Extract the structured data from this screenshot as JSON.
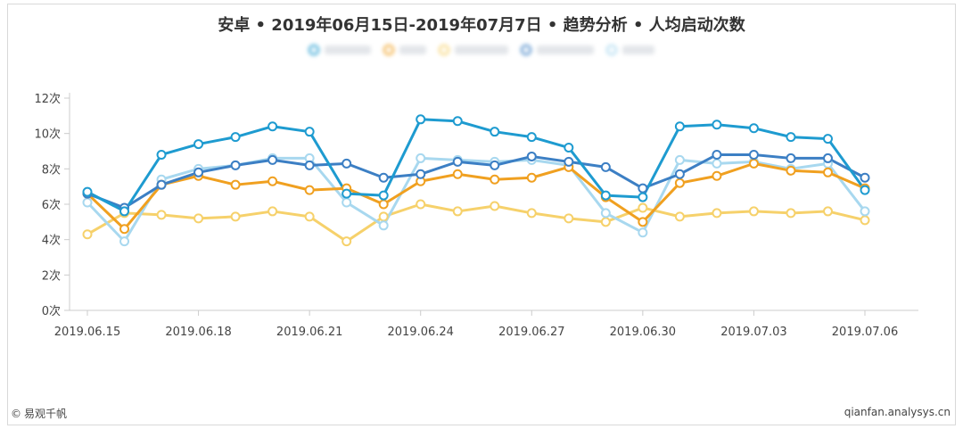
{
  "title": "安卓 • 2019年06月15日-2019年07月7日 • 趋势分析 • 人均启动次数",
  "footer": {
    "copyright_symbol": "©",
    "brand": "易观千帆",
    "url": "qianfan.analysys.cn"
  },
  "colors": {
    "axis": "#cccccc",
    "text": "#444444"
  },
  "chart_data": {
    "type": "line",
    "title": "安卓 • 2019年06月15日-2019年07月7日 • 趋势分析 • 人均启动次数",
    "xlabel": "",
    "ylabel": "",
    "ylim": [
      0,
      12
    ],
    "yticks": [
      0,
      2,
      4,
      6,
      8,
      10,
      12
    ],
    "ytick_labels": [
      "0次",
      "2次",
      "4次",
      "6次",
      "8次",
      "10次",
      "12次"
    ],
    "x": [
      "2019.06.15",
      "2019.06.16",
      "2019.06.17",
      "2019.06.18",
      "2019.06.19",
      "2019.06.20",
      "2019.06.21",
      "2019.06.22",
      "2019.06.23",
      "2019.06.24",
      "2019.06.25",
      "2019.06.26",
      "2019.06.27",
      "2019.06.28",
      "2019.06.29",
      "2019.06.30",
      "2019.07.01",
      "2019.07.02",
      "2019.07.03",
      "2019.07.04",
      "2019.07.05",
      "2019.07.06"
    ],
    "xtick_labels": [
      "2019.06.15",
      "2019.06.18",
      "2019.06.21",
      "2019.06.24",
      "2019.06.27",
      "2019.06.30",
      "2019.07.03",
      "2019.07.06"
    ],
    "grid": false,
    "legend_position": "top-center",
    "series": [
      {
        "name": "",
        "color": "#1e9bd0",
        "values": [
          6.7,
          5.6,
          8.8,
          9.4,
          9.8,
          10.4,
          10.1,
          6.6,
          6.5,
          10.8,
          10.7,
          10.1,
          9.8,
          9.2,
          6.5,
          6.4,
          10.4,
          10.5,
          10.3,
          9.8,
          9.7,
          6.8
        ]
      },
      {
        "name": "",
        "color": "#f0a020",
        "values": [
          6.6,
          4.6,
          7.1,
          7.6,
          7.1,
          7.3,
          6.8,
          6.9,
          6.0,
          7.3,
          7.7,
          7.4,
          7.5,
          8.1,
          6.4,
          5.0,
          7.2,
          7.6,
          8.3,
          7.9,
          7.8,
          6.9
        ]
      },
      {
        "name": "",
        "color": "#f6d16b",
        "values": [
          4.3,
          5.5,
          5.4,
          5.2,
          5.3,
          5.6,
          5.3,
          3.9,
          5.3,
          6.0,
          5.6,
          5.9,
          5.5,
          5.2,
          5.0,
          5.8,
          5.3,
          5.5,
          5.6,
          5.5,
          5.6,
          5.1
        ]
      },
      {
        "name": "",
        "color": "#3c7fc4",
        "values": [
          6.6,
          5.8,
          7.1,
          7.8,
          8.2,
          8.5,
          8.2,
          8.3,
          7.5,
          7.7,
          8.4,
          8.2,
          8.7,
          8.4,
          8.1,
          6.9,
          7.7,
          8.8,
          8.8,
          8.6,
          8.6,
          7.5
        ]
      },
      {
        "name": "",
        "color": "#a8d8ef",
        "values": [
          6.1,
          3.9,
          7.4,
          8.0,
          8.2,
          8.6,
          8.6,
          6.1,
          4.8,
          8.6,
          8.5,
          8.4,
          8.5,
          8.2,
          5.5,
          4.4,
          8.5,
          8.3,
          8.4,
          8.0,
          8.3,
          5.6
        ]
      }
    ]
  }
}
